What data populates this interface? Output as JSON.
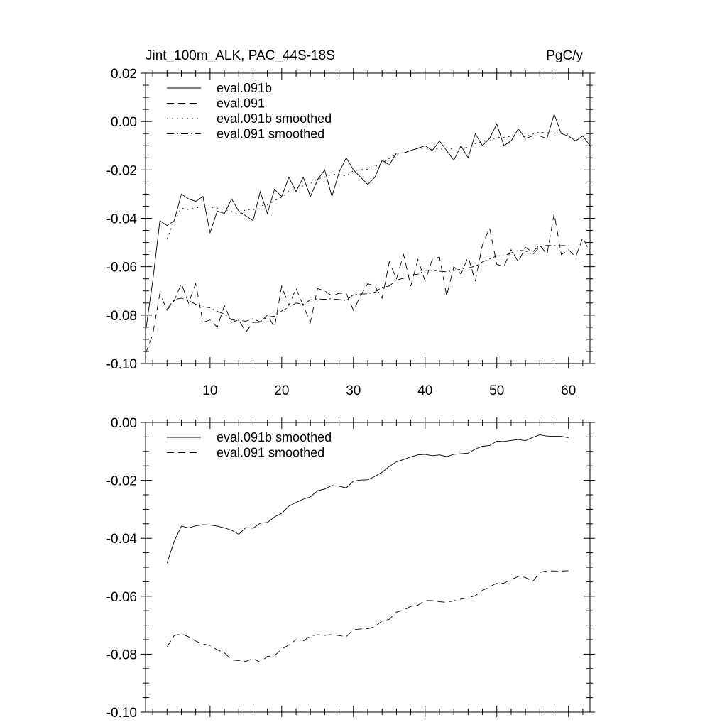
{
  "chart_data": [
    {
      "type": "line",
      "title_left": "Jint_100m_ALK, PAC_44S-18S",
      "title_right": "PgC/y",
      "xlabel": "",
      "ylabel": "",
      "xlim": [
        1,
        63
      ],
      "ylim": [
        -0.1,
        0.02
      ],
      "xticks": [
        10,
        20,
        30,
        40,
        50,
        60
      ],
      "xtick_labels": [
        "10",
        "20",
        "30",
        "40",
        "50",
        "60"
      ],
      "yticks": [
        -0.1,
        -0.08,
        -0.06,
        -0.04,
        -0.02,
        0.0,
        0.02
      ],
      "ytick_labels": [
        "-0.10",
        "-0.08",
        "-0.06",
        "-0.04",
        "-0.02",
        "0.00",
        "0.02"
      ],
      "legend_position": "top-left",
      "series": [
        {
          "name": "eval.091b",
          "style": "solid",
          "x": [
            1,
            2,
            3,
            4,
            5,
            6,
            7,
            8,
            9,
            10,
            11,
            12,
            13,
            14,
            15,
            16,
            17,
            18,
            19,
            20,
            21,
            22,
            23,
            24,
            25,
            26,
            27,
            28,
            29,
            30,
            31,
            32,
            33,
            34,
            35,
            36,
            37,
            38,
            39,
            40,
            41,
            42,
            43,
            44,
            45,
            46,
            47,
            48,
            49,
            50,
            51,
            52,
            53,
            54,
            55,
            56,
            57,
            58,
            59,
            60,
            61,
            62,
            63
          ],
          "values": [
            -0.087,
            -0.066,
            -0.041,
            -0.043,
            -0.041,
            -0.03,
            -0.032,
            -0.033,
            -0.031,
            -0.046,
            -0.037,
            -0.038,
            -0.032,
            -0.037,
            -0.039,
            -0.041,
            -0.029,
            -0.038,
            -0.028,
            -0.031,
            -0.023,
            -0.029,
            -0.023,
            -0.031,
            -0.024,
            -0.02,
            -0.031,
            -0.021,
            -0.015,
            -0.02,
            -0.023,
            -0.026,
            -0.023,
            -0.016,
            -0.018,
            -0.013,
            -0.013,
            -0.012,
            -0.011,
            -0.01,
            -0.012,
            -0.008,
            -0.012,
            -0.016,
            -0.01,
            -0.015,
            -0.005,
            -0.01,
            -0.007,
            -0.001,
            -0.01,
            -0.008,
            -0.003,
            -0.007,
            -0.006,
            -0.006,
            -0.007,
            0.003,
            -0.005,
            -0.006,
            -0.008,
            -0.006,
            -0.01
          ]
        },
        {
          "name": "eval.091",
          "style": "dashed",
          "x": [
            1,
            2,
            3,
            4,
            5,
            6,
            7,
            8,
            9,
            10,
            11,
            12,
            13,
            14,
            15,
            16,
            17,
            18,
            19,
            20,
            21,
            22,
            23,
            24,
            25,
            26,
            27,
            28,
            29,
            30,
            31,
            32,
            33,
            34,
            35,
            36,
            37,
            38,
            39,
            40,
            41,
            42,
            43,
            44,
            45,
            46,
            47,
            48,
            49,
            50,
            51,
            52,
            53,
            54,
            55,
            56,
            57,
            58,
            59,
            60,
            61,
            62,
            63
          ],
          "values": [
            -0.096,
            -0.088,
            -0.071,
            -0.078,
            -0.074,
            -0.067,
            -0.075,
            -0.067,
            -0.083,
            -0.082,
            -0.085,
            -0.076,
            -0.083,
            -0.082,
            -0.087,
            -0.083,
            -0.083,
            -0.08,
            -0.085,
            -0.068,
            -0.076,
            -0.069,
            -0.076,
            -0.083,
            -0.069,
            -0.07,
            -0.072,
            -0.071,
            -0.071,
            -0.078,
            -0.072,
            -0.067,
            -0.068,
            -0.073,
            -0.058,
            -0.065,
            -0.055,
            -0.068,
            -0.057,
            -0.066,
            -0.057,
            -0.056,
            -0.072,
            -0.06,
            -0.063,
            -0.056,
            -0.066,
            -0.051,
            -0.044,
            -0.059,
            -0.06,
            -0.053,
            -0.058,
            -0.052,
            -0.054,
            -0.051,
            -0.055,
            -0.038,
            -0.055,
            -0.053,
            -0.056,
            -0.048,
            -0.054
          ]
        },
        {
          "name": "eval.091b smoothed",
          "style": "dotted",
          "x": [
            4,
            5,
            6,
            7,
            8,
            9,
            10,
            11,
            12,
            13,
            14,
            15,
            16,
            17,
            18,
            19,
            20,
            21,
            22,
            23,
            24,
            25,
            26,
            27,
            28,
            29,
            30,
            31,
            32,
            33,
            34,
            35,
            36,
            37,
            38,
            39,
            40,
            41,
            42,
            43,
            44,
            45,
            46,
            47,
            48,
            49,
            50,
            51,
            52,
            53,
            54,
            55,
            56,
            57,
            58,
            59,
            60
          ],
          "values": [
            -0.0485,
            -0.041,
            -0.0358,
            -0.0364,
            -0.0357,
            -0.0353,
            -0.0354,
            -0.0358,
            -0.0364,
            -0.0372,
            -0.0386,
            -0.0363,
            -0.0365,
            -0.0348,
            -0.0345,
            -0.0326,
            -0.0314,
            -0.0289,
            -0.0276,
            -0.0265,
            -0.0257,
            -0.0236,
            -0.023,
            -0.0218,
            -0.022,
            -0.0226,
            -0.0203,
            -0.0199,
            -0.0198,
            -0.0186,
            -0.0172,
            -0.0152,
            -0.0136,
            -0.0128,
            -0.0119,
            -0.0112,
            -0.011,
            -0.0115,
            -0.0112,
            -0.0118,
            -0.011,
            -0.0108,
            -0.0106,
            -0.0092,
            -0.0082,
            -0.008,
            -0.0065,
            -0.0066,
            -0.0062,
            -0.0059,
            -0.0063,
            -0.0052,
            -0.0043,
            -0.0047,
            -0.0048,
            -0.0048,
            -0.0053
          ]
        },
        {
          "name": "eval.091 smoothed",
          "style": "dash-dot",
          "x": [
            4,
            5,
            6,
            7,
            8,
            9,
            10,
            11,
            12,
            13,
            14,
            15,
            16,
            17,
            18,
            19,
            20,
            21,
            22,
            23,
            24,
            25,
            26,
            27,
            28,
            29,
            30,
            31,
            32,
            33,
            34,
            35,
            36,
            37,
            38,
            39,
            40,
            41,
            42,
            43,
            44,
            45,
            46,
            47,
            48,
            49,
            50,
            51,
            52,
            53,
            54,
            55,
            56,
            57,
            58,
            59,
            60
          ],
          "values": [
            -0.0775,
            -0.0736,
            -0.073,
            -0.074,
            -0.0755,
            -0.0765,
            -0.077,
            -0.0785,
            -0.0795,
            -0.082,
            -0.0822,
            -0.0825,
            -0.0815,
            -0.0828,
            -0.0808,
            -0.0805,
            -0.0783,
            -0.0768,
            -0.075,
            -0.0755,
            -0.0737,
            -0.0733,
            -0.0735,
            -0.0732,
            -0.0736,
            -0.074,
            -0.0715,
            -0.0713,
            -0.0712,
            -0.0705,
            -0.0685,
            -0.068,
            -0.0655,
            -0.0648,
            -0.0635,
            -0.0631,
            -0.0615,
            -0.0615,
            -0.0619,
            -0.0621,
            -0.0616,
            -0.061,
            -0.0605,
            -0.0598,
            -0.058,
            -0.0568,
            -0.0555,
            -0.0555,
            -0.0543,
            -0.0532,
            -0.0535,
            -0.055,
            -0.0518,
            -0.0512,
            -0.0513,
            -0.0513,
            -0.0512
          ]
        }
      ]
    },
    {
      "type": "line",
      "xlabel": "",
      "ylabel": "",
      "xlim": [
        1,
        63
      ],
      "ylim": [
        -0.1,
        0.0
      ],
      "xticks": [
        10,
        20,
        30,
        40,
        50,
        60
      ],
      "xtick_labels": [],
      "yticks": [
        -0.1,
        -0.08,
        -0.06,
        -0.04,
        -0.02,
        0.0
      ],
      "ytick_labels": [
        "-0.10",
        "-0.08",
        "-0.06",
        "-0.04",
        "-0.02",
        "0.00"
      ],
      "legend_position": "top-left",
      "series": [
        {
          "name": "eval.091b smoothed",
          "style": "solid",
          "x": [
            4,
            5,
            6,
            7,
            8,
            9,
            10,
            11,
            12,
            13,
            14,
            15,
            16,
            17,
            18,
            19,
            20,
            21,
            22,
            23,
            24,
            25,
            26,
            27,
            28,
            29,
            30,
            31,
            32,
            33,
            34,
            35,
            36,
            37,
            38,
            39,
            40,
            41,
            42,
            43,
            44,
            45,
            46,
            47,
            48,
            49,
            50,
            51,
            52,
            53,
            54,
            55,
            56,
            57,
            58,
            59,
            60
          ],
          "values": [
            -0.0485,
            -0.041,
            -0.0358,
            -0.0364,
            -0.0357,
            -0.0353,
            -0.0354,
            -0.0358,
            -0.0364,
            -0.0372,
            -0.0386,
            -0.0363,
            -0.0365,
            -0.0348,
            -0.0345,
            -0.0326,
            -0.0314,
            -0.0289,
            -0.0276,
            -0.0265,
            -0.0257,
            -0.0236,
            -0.023,
            -0.0218,
            -0.022,
            -0.0226,
            -0.0203,
            -0.0199,
            -0.0198,
            -0.0186,
            -0.0172,
            -0.0152,
            -0.0136,
            -0.0128,
            -0.0119,
            -0.0112,
            -0.011,
            -0.0115,
            -0.0112,
            -0.0118,
            -0.011,
            -0.0108,
            -0.0106,
            -0.0092,
            -0.0082,
            -0.008,
            -0.0065,
            -0.0066,
            -0.0062,
            -0.0059,
            -0.0063,
            -0.0052,
            -0.0043,
            -0.0047,
            -0.0048,
            -0.0048,
            -0.0053
          ]
        },
        {
          "name": "eval.091 smoothed",
          "style": "dashed",
          "x": [
            4,
            5,
            6,
            7,
            8,
            9,
            10,
            11,
            12,
            13,
            14,
            15,
            16,
            17,
            18,
            19,
            20,
            21,
            22,
            23,
            24,
            25,
            26,
            27,
            28,
            29,
            30,
            31,
            32,
            33,
            34,
            35,
            36,
            37,
            38,
            39,
            40,
            41,
            42,
            43,
            44,
            45,
            46,
            47,
            48,
            49,
            50,
            51,
            52,
            53,
            54,
            55,
            56,
            57,
            58,
            59,
            60
          ],
          "values": [
            -0.0775,
            -0.0736,
            -0.073,
            -0.074,
            -0.0755,
            -0.0765,
            -0.077,
            -0.0785,
            -0.0795,
            -0.082,
            -0.0822,
            -0.0825,
            -0.0815,
            -0.0828,
            -0.0808,
            -0.0805,
            -0.0783,
            -0.0768,
            -0.075,
            -0.0755,
            -0.0737,
            -0.0733,
            -0.0735,
            -0.0732,
            -0.0736,
            -0.074,
            -0.0715,
            -0.0713,
            -0.0712,
            -0.0705,
            -0.0685,
            -0.068,
            -0.0655,
            -0.0648,
            -0.0635,
            -0.0631,
            -0.0615,
            -0.0615,
            -0.0619,
            -0.0621,
            -0.0616,
            -0.061,
            -0.0605,
            -0.0598,
            -0.058,
            -0.0568,
            -0.0555,
            -0.0555,
            -0.0543,
            -0.0532,
            -0.0535,
            -0.055,
            -0.0518,
            -0.0512,
            -0.0513,
            -0.0513,
            -0.0512
          ]
        }
      ]
    }
  ]
}
